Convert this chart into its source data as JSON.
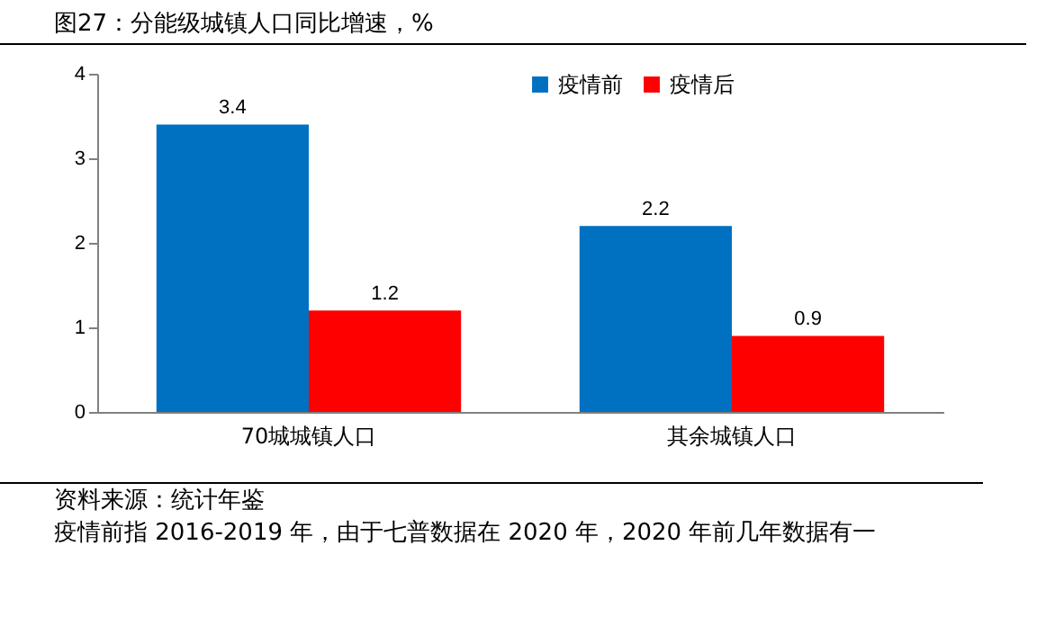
{
  "chart_data": {
    "type": "bar",
    "title": "图27：分能级城镇人口同比增速，%",
    "categories": [
      "70城城镇人口",
      "其余城镇人口"
    ],
    "series": [
      {
        "name": "疫情前",
        "color": "#0070c0",
        "values": [
          3.4,
          2.2
        ]
      },
      {
        "name": "疫情后",
        "color": "#ff0000",
        "values": [
          1.2,
          0.9
        ]
      }
    ],
    "ylim": [
      0,
      4
    ],
    "yticks": [
      0,
      1,
      2,
      3,
      4
    ],
    "grid": false,
    "legend": "top",
    "data_labels": true,
    "annotations": [
      "资料来源：统计年鉴",
      "疫情前指 2016-2019 年，由于七普数据在 2020 年，2020 年前几年数据有一"
    ]
  }
}
